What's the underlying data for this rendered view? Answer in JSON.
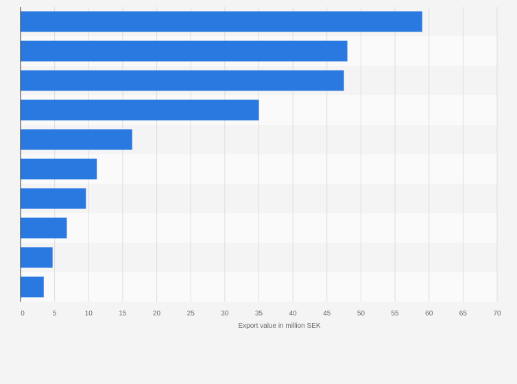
{
  "chart_data": {
    "type": "bar",
    "orientation": "horizontal",
    "title": "",
    "xlabel": "Export value in million SEK",
    "ylabel": "",
    "categories": [
      "",
      "",
      "",
      "",
      "",
      "",
      "",
      "",
      "",
      ""
    ],
    "values": [
      59,
      48,
      47.5,
      35,
      16.4,
      11.2,
      9.6,
      6.8,
      4.7,
      3.4
    ],
    "xlim": [
      0,
      70
    ],
    "xticks": [
      0,
      5,
      10,
      15,
      20,
      25,
      30,
      35,
      40,
      45,
      50,
      55,
      60,
      65,
      70
    ],
    "grid": true,
    "legend": "none",
    "colors": {
      "bar": "#2a79e0",
      "band_dark": "#f4f4f4",
      "band_light": "#fafafa",
      "grid": "#dddddd",
      "axis": "#333333"
    }
  }
}
